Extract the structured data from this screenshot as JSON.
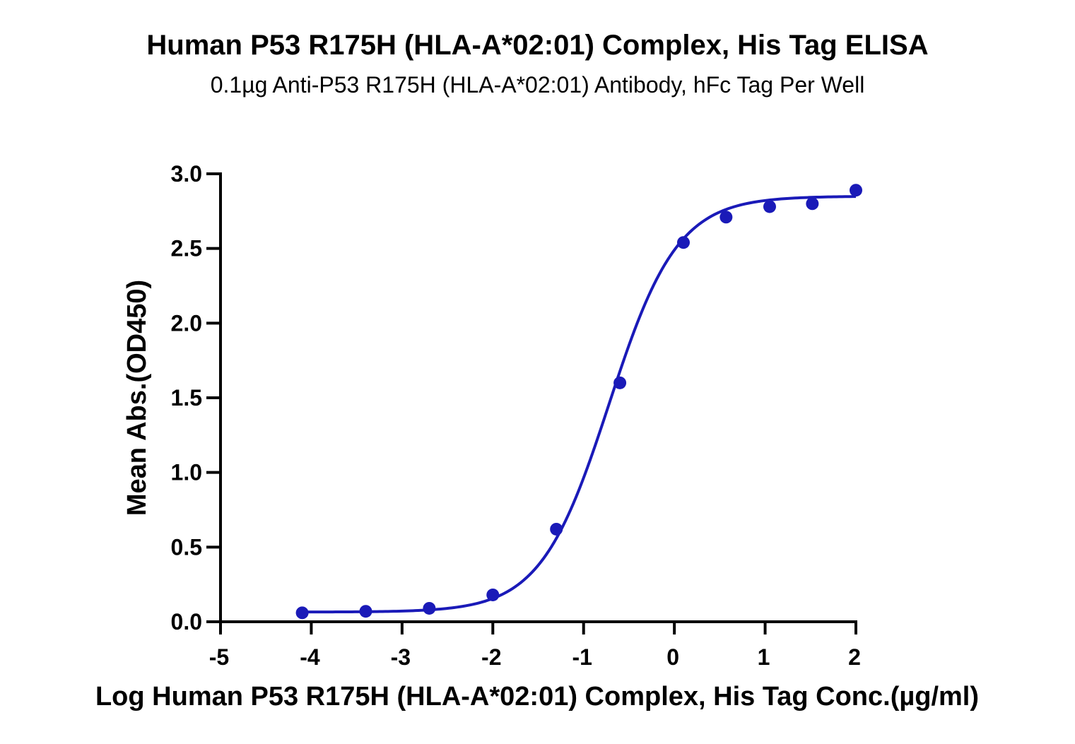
{
  "chart_data": {
    "type": "scatter",
    "title": "Human P53 R175H (HLA-A*02:01) Complex, His Tag ELISA",
    "subtitle": "0.1µg Anti-P53 R175H (HLA-A*02:01) Antibody, hFc Tag Per Well",
    "xlabel": "Log Human P53 R175H (HLA-A*02:01) Complex, His Tag Conc.(µg/ml)",
    "ylabel": "Mean Abs.(OD450)",
    "xlim": [
      -5,
      2
    ],
    "ylim": [
      0,
      3.0
    ],
    "x_ticks": [
      "-5",
      "-4",
      "-3",
      "-2",
      "-1",
      "0",
      "1",
      "2"
    ],
    "y_ticks": [
      "0.0",
      "0.5",
      "1.0",
      "1.5",
      "2.0",
      "2.5",
      "3.0"
    ],
    "grid": false,
    "color": "#1a1ab8",
    "series": [
      {
        "points": [
          {
            "x": -4.1,
            "y": 0.06
          },
          {
            "x": -3.4,
            "y": 0.07
          },
          {
            "x": -2.7,
            "y": 0.09
          },
          {
            "x": -2.0,
            "y": 0.18
          },
          {
            "x": -1.3,
            "y": 0.62
          },
          {
            "x": -0.6,
            "y": 1.6
          },
          {
            "x": 0.1,
            "y": 2.54
          },
          {
            "x": 0.57,
            "y": 2.71
          },
          {
            "x": 1.05,
            "y": 2.78
          },
          {
            "x": 1.52,
            "y": 2.8
          },
          {
            "x": 2.0,
            "y": 2.89
          }
        ],
        "fit": {
          "model": "4PL",
          "bottom": 0.065,
          "top": 2.85,
          "logEC50": -0.72,
          "hill": 1.15
        }
      }
    ]
  }
}
